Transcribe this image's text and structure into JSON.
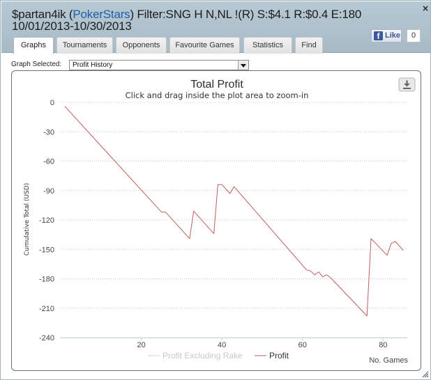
{
  "window": {
    "title_prefix": "$partan4ik (",
    "title_site": "PokerStars",
    "title_rest": ") Filter:SNG H N,NL !(R) S:$4.1 R:$0.4 E:180 10/01/2013-10/30/2013",
    "close_label": "×"
  },
  "facebook": {
    "like_label": "Like",
    "like_count": "0",
    "icon": "facebook-icon"
  },
  "tabs": [
    {
      "label": "Graphs",
      "active": true
    },
    {
      "label": "Tournaments",
      "active": false
    },
    {
      "label": "Opponents",
      "active": false
    },
    {
      "label": "Favourite Games",
      "active": false
    },
    {
      "label": "Statistics",
      "active": false
    },
    {
      "label": "Find",
      "active": false
    }
  ],
  "graph_select": {
    "label": "Graph Selected:",
    "value": "Profit History"
  },
  "export_icon": "download-icon",
  "chart_data": {
    "type": "line",
    "title": "Total Profit",
    "subtitle": "Click and drag inside the plot area to zoom-in",
    "xlabel": "No. Games",
    "ylabel": "Cumulative Total (USD)",
    "xlim": [
      0,
      86
    ],
    "ylim": [
      -240,
      0
    ],
    "x_ticks": [
      20,
      40,
      60,
      80
    ],
    "y_ticks": [
      0,
      -30,
      -60,
      -90,
      -120,
      -150,
      -180,
      -210,
      -240
    ],
    "grid": "horizontal dotted",
    "legend_position": "bottom",
    "series": [
      {
        "name": "Profit Excluding Rake",
        "color": "#d3d3d3",
        "visible": false,
        "x": [],
        "y": []
      },
      {
        "name": "Profit",
        "color": "#c15d5d",
        "visible": true,
        "x": [
          1,
          25,
          26,
          32,
          33,
          38,
          39,
          40,
          42,
          43,
          61,
          62,
          63,
          64,
          65,
          66,
          67,
          76,
          77,
          81,
          82,
          83,
          85
        ],
        "y": [
          -4,
          -112,
          -112,
          -139,
          -111,
          -134,
          -84,
          -84,
          -93,
          -86,
          -171,
          -172,
          -176,
          -173,
          -178,
          -176,
          -179,
          -218,
          -139,
          -156,
          -144,
          -142,
          -151
        ]
      }
    ]
  }
}
